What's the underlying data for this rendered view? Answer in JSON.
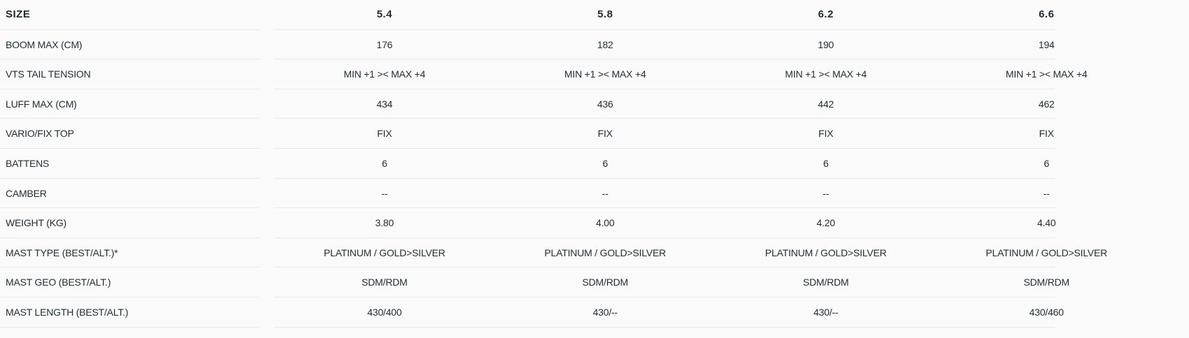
{
  "header": {
    "label": "SIZE",
    "sizes": [
      "5.4",
      "5.8",
      "6.2",
      "6.6"
    ]
  },
  "rows": [
    {
      "label": "BOOM MAX (CM)",
      "values": [
        "176",
        "182",
        "190",
        "194"
      ]
    },
    {
      "label": "VTS TAIL TENSION",
      "values": [
        "MIN +1 >< MAX +4",
        "MIN +1 >< MAX +4",
        "MIN +1 >< MAX +4",
        "MIN +1 >< MAX +4"
      ]
    },
    {
      "label": "LUFF MAX (CM)",
      "values": [
        "434",
        "436",
        "442",
        "462"
      ]
    },
    {
      "label": "VARIO/FIX TOP",
      "values": [
        "FIX",
        "FIX",
        "FIX",
        "FIX"
      ]
    },
    {
      "label": "BATTENS",
      "values": [
        "6",
        "6",
        "6",
        "6"
      ]
    },
    {
      "label": "CAMBER",
      "values": [
        "--",
        "--",
        "--",
        "--"
      ]
    },
    {
      "label": "WEIGHT (KG)",
      "values": [
        "3.80",
        "4.00",
        "4.20",
        "4.40"
      ]
    },
    {
      "label": "MAST TYPE (BEST/ALT.)*",
      "values": [
        "PLATINUM / GOLD>SILVER",
        "PLATINUM / GOLD>SILVER",
        "PLATINUM / GOLD>SILVER",
        "PLATINUM / GOLD>SILVER"
      ]
    },
    {
      "label": "MAST GEO (BEST/ALT.)",
      "values": [
        "SDM/RDM",
        "SDM/RDM",
        "SDM/RDM",
        "SDM/RDM"
      ]
    },
    {
      "label": "MAST LENGTH (BEST/ALT.)",
      "values": [
        "430/400",
        "430/--",
        "430/--",
        "430/460"
      ]
    }
  ]
}
